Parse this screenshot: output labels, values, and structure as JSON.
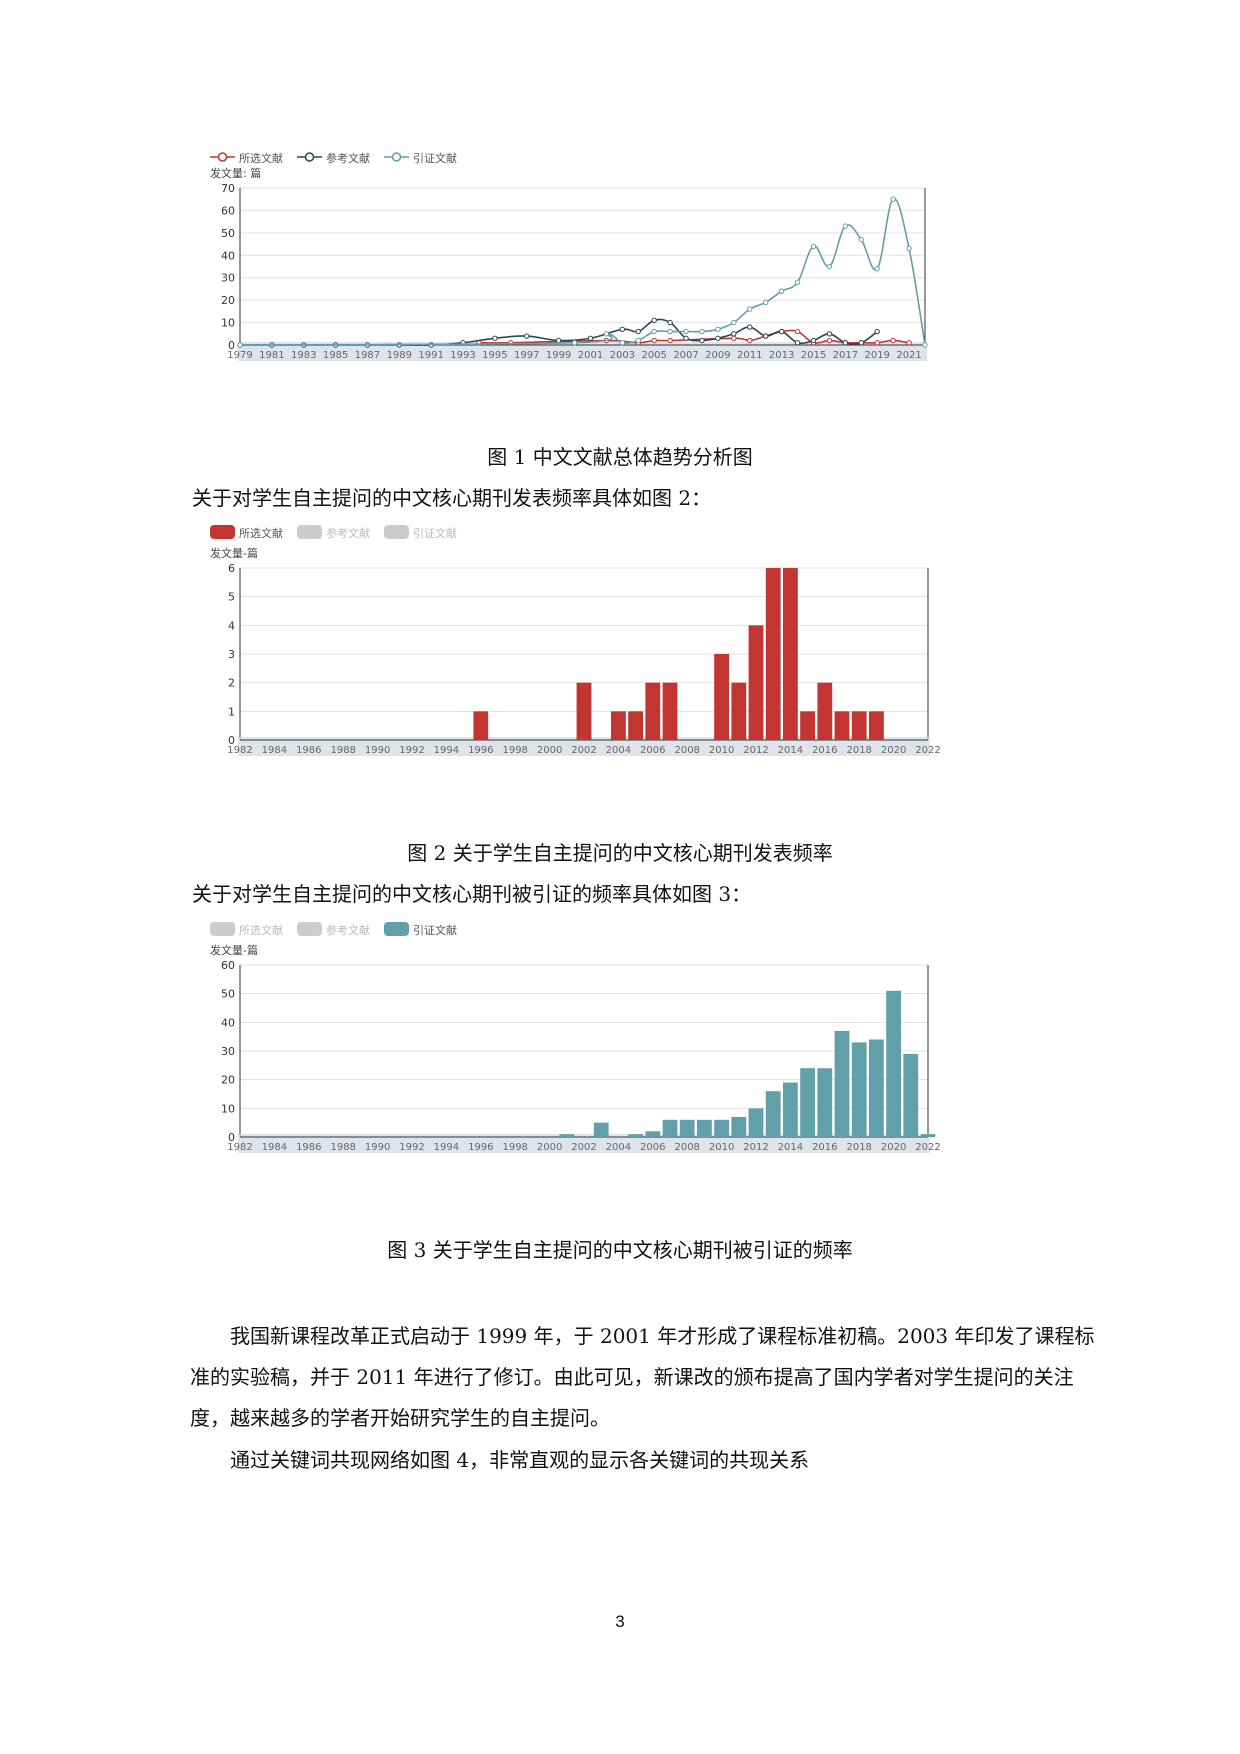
{
  "colors": {
    "selected": "#c23531",
    "reference": "#2f4554",
    "citing": "#61a0a8",
    "inactive": "#cccccc"
  },
  "chart_data": [
    {
      "type": "line",
      "ylabel": "发文量: 篇",
      "ylim": [
        0,
        70
      ],
      "yticks": [
        0,
        10,
        20,
        30,
        40,
        50,
        60,
        70
      ],
      "x_range": [
        1979,
        2022
      ],
      "xticks": [
        "1979",
        "1981",
        "1983",
        "1985",
        "1987",
        "1989",
        "1991",
        "1993",
        "1995",
        "1997",
        "1999",
        "2001",
        "2003",
        "2005",
        "2007",
        "2009",
        "2011",
        "2013",
        "2015",
        "2017",
        "2019",
        "2021"
      ],
      "legend": [
        "所选文献",
        "参考文献",
        "引证文献"
      ],
      "legend_position": "top-left",
      "series": [
        {
          "name": "所选文献",
          "x": [
            1994,
            1996,
            2002,
            2004,
            2005,
            2006,
            2010,
            2011,
            2012,
            2013,
            2014,
            2015,
            2016,
            2017,
            2018,
            2019,
            2020,
            2021
          ],
          "values": [
            1,
            1,
            2,
            1,
            2,
            2,
            3,
            2,
            4,
            6,
            6,
            1,
            2,
            1,
            1,
            1,
            2,
            1
          ]
        },
        {
          "name": "参考文献",
          "x": [
            1979,
            1981,
            1983,
            1985,
            1987,
            1989,
            1991,
            1993,
            1995,
            1997,
            1999,
            2001,
            2003,
            2004,
            2005,
            2006,
            2007,
            2008,
            2009,
            2010,
            2011,
            2012,
            2013,
            2014,
            2015,
            2016,
            2017,
            2018,
            2019
          ],
          "values": [
            0,
            0,
            0,
            0,
            0,
            0,
            0,
            1,
            3,
            4,
            2,
            3,
            7,
            6,
            11,
            10,
            3,
            2,
            3,
            5,
            8,
            4,
            6,
            1,
            2,
            5,
            1,
            1,
            6
          ]
        },
        {
          "name": "引证文献",
          "x": [
            1979,
            2000,
            2002,
            2003,
            2004,
            2005,
            2006,
            2007,
            2008,
            2009,
            2010,
            2011,
            2012,
            2013,
            2014,
            2015,
            2016,
            2017,
            2018,
            2019,
            2020,
            2021,
            2022
          ],
          "values": [
            0,
            1,
            5,
            1,
            2,
            6,
            6,
            6,
            6,
            7,
            10,
            16,
            19,
            24,
            28,
            44,
            35,
            53,
            47,
            34,
            65,
            43,
            0
          ]
        }
      ]
    },
    {
      "type": "bar",
      "ylabel": "发文量-篇",
      "ylim": [
        0,
        6
      ],
      "yticks": [
        0,
        1,
        2,
        3,
        4,
        5,
        6
      ],
      "x_range": [
        1982,
        2022
      ],
      "xticks": [
        "1982",
        "1984",
        "1986",
        "1988",
        "1990",
        "1992",
        "1994",
        "1996",
        "1998",
        "2000",
        "2002",
        "2004",
        "2006",
        "2008",
        "2010",
        "2012",
        "2014",
        "2016",
        "2018",
        "2020",
        "2022"
      ],
      "legend": [
        "所选文献",
        "参考文献",
        "引证文献"
      ],
      "legend_active": [
        true,
        false,
        false
      ],
      "legend_position": "top-left",
      "categories": [
        1996,
        2002,
        2004,
        2005,
        2006,
        2007,
        2010,
        2011,
        2012,
        2013,
        2014,
        2015,
        2016,
        2017,
        2018,
        2019
      ],
      "values": [
        1,
        2,
        1,
        1,
        2,
        2,
        3,
        2,
        4,
        6,
        6,
        1,
        2,
        1,
        1,
        1
      ]
    },
    {
      "type": "bar",
      "ylabel": "发文量-篇",
      "ylim": [
        0,
        60
      ],
      "yticks": [
        0,
        10,
        20,
        30,
        40,
        50,
        60
      ],
      "x_range": [
        1982,
        2022
      ],
      "xticks": [
        "1982",
        "1984",
        "1986",
        "1988",
        "1990",
        "1992",
        "1994",
        "1996",
        "1998",
        "2000",
        "2002",
        "2004",
        "2006",
        "2008",
        "2010",
        "2012",
        "2014",
        "2016",
        "2018",
        "2020",
        "2022"
      ],
      "legend": [
        "所选文献",
        "参考文献",
        "引证文献"
      ],
      "legend_active": [
        false,
        false,
        true
      ],
      "legend_position": "top-left",
      "categories": [
        2001,
        2003,
        2005,
        2006,
        2007,
        2008,
        2009,
        2010,
        2011,
        2012,
        2013,
        2014,
        2015,
        2016,
        2017,
        2018,
        2019,
        2020,
        2021,
        2022
      ],
      "values": [
        1,
        5,
        1,
        2,
        6,
        6,
        6,
        6,
        7,
        10,
        16,
        19,
        24,
        24,
        37,
        33,
        34,
        51,
        29,
        1
      ]
    }
  ],
  "fig1_caption": "图 1  中文文献总体趋势分析图",
  "intro2": "关于对学生自主提问的中文核心期刊发表频率具体如图 2：",
  "fig2_caption": "图 2  关于学生自主提问的中文核心期刊发表频率",
  "intro3": "关于对学生自主提问的中文核心期刊被引证的频率具体如图 3：",
  "fig3_caption": "图 3  关于学生自主提问的中文核心期刊被引证的频率",
  "paragraph1": "我国新课程改革正式启动于 1999 年，于 2001 年才形成了课程标准初稿。2003 年印发了课程标准的实验稿，并于 2011 年进行了修订。由此可见，新课改的颁布提高了国内学者对学生提问的关注度，越来越多的学者开始研究学生的自主提问。",
  "paragraph2": "通过关键词共现网络如图 4，非常直观的显示各关键词的共现关系",
  "page_number": "3"
}
